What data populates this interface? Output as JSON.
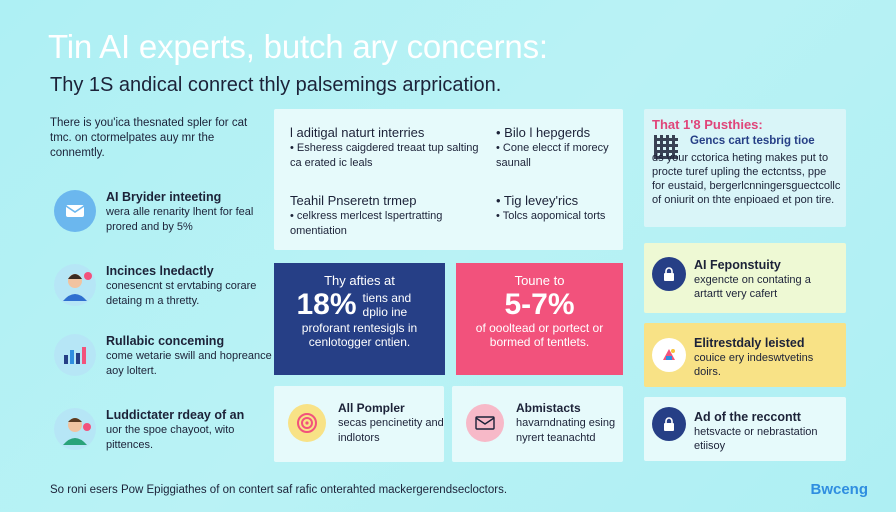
{
  "header": {
    "title": "Tin AI experts, butch ary concerns:",
    "subtitle": "Thy 1S andical conrect thly palsemings arprication."
  },
  "intro": "There is you'ica thesnated spler for cat tmc. on ctormelpates auy mr the connemtly.",
  "left_items": [
    {
      "heading": "AI Bryider inteeting",
      "body": "wera alle renarity lhent for feal prored and by 5%",
      "icon": "envelope-icon",
      "color": "#6bb7ee"
    },
    {
      "heading": "Incinces lnedactly",
      "body": "conesencnt st ervtabing corare detaing m a thretty.",
      "icon": "person-avatar-icon",
      "color": "#b6e6f6"
    },
    {
      "heading": "Rullabic conceming",
      "body": "come wetarie swill and hopreance aoy loltert.",
      "icon": "chart-icon",
      "color": "#b6e6f6"
    },
    {
      "heading": "Luddictater rdeay of an",
      "body": "uor the spoe chayoot, wito pittences.",
      "icon": "person-avatar-icon",
      "color": "#b6e6f6"
    }
  ],
  "mid_panel": {
    "cells": [
      {
        "heading": "l aditigal naturt interries",
        "body": "• Esheress caigdered treaat tup salting ca erated ic leals"
      },
      {
        "heading": "• Bilo l hepgerds",
        "body": "• Cone elecct if morecy saunall"
      },
      {
        "heading": "Teahil Pnseretn trmep",
        "body": "• celkress merlcest lspertratting omentiation"
      },
      {
        "heading": "• Tig levey'rics",
        "body": "• Tolcs aopomical torts"
      }
    ]
  },
  "stats": [
    {
      "line1": "Thy afties at",
      "big": "18%",
      "side": "tiens and dplio ine",
      "line2": "proforant rentesigls in cenlotogger cntien.",
      "color": "#263f86"
    },
    {
      "line1": "Toune to",
      "big": "5-7%",
      "side": "",
      "line2": "of oooltead or portect or bormed of tentlets.",
      "color": "#f2527c"
    }
  ],
  "bottom_panels": [
    {
      "heading": "All Pompler",
      "body": "secas pencinetity and indlotors",
      "icon": "target-icon",
      "color": "#f8e286"
    },
    {
      "heading": "Abmistacts",
      "body": "havarndnating esing nyrert teanachtd",
      "icon": "envelope-icon",
      "color": "#f7b9c8"
    }
  ],
  "right_panel": {
    "heading": "That 1'8 Pusthies:",
    "sub": "Gencs cart tesbrig tioe",
    "body": "ds your cctorica heting makes put to procte turef upling the ectcntss, ppe for eustaid, bergerlcnningersguectcollc of oniurit on thte enpioaed et pon tire."
  },
  "cards": [
    {
      "heading": "AI Feponstuity",
      "body": "exgencte on contating a artartt very cafert",
      "icon": "lock-icon",
      "color": "#263f86"
    },
    {
      "heading": "Elitrestdaly leisted",
      "body": "couice ery indeswtvetins doirs.",
      "icon": "palette-icon",
      "color": "#ffffff"
    },
    {
      "heading": "Ad of the reccontt",
      "body": "hetsvacte or nebrastation etiisoy",
      "icon": "lock-icon",
      "color": "#263f86"
    }
  ],
  "footer": "So roni esers Pow Epiggiathes of on contert saf rafic onterahted mackergerendsecloctors.",
  "brand": "Bwceng"
}
